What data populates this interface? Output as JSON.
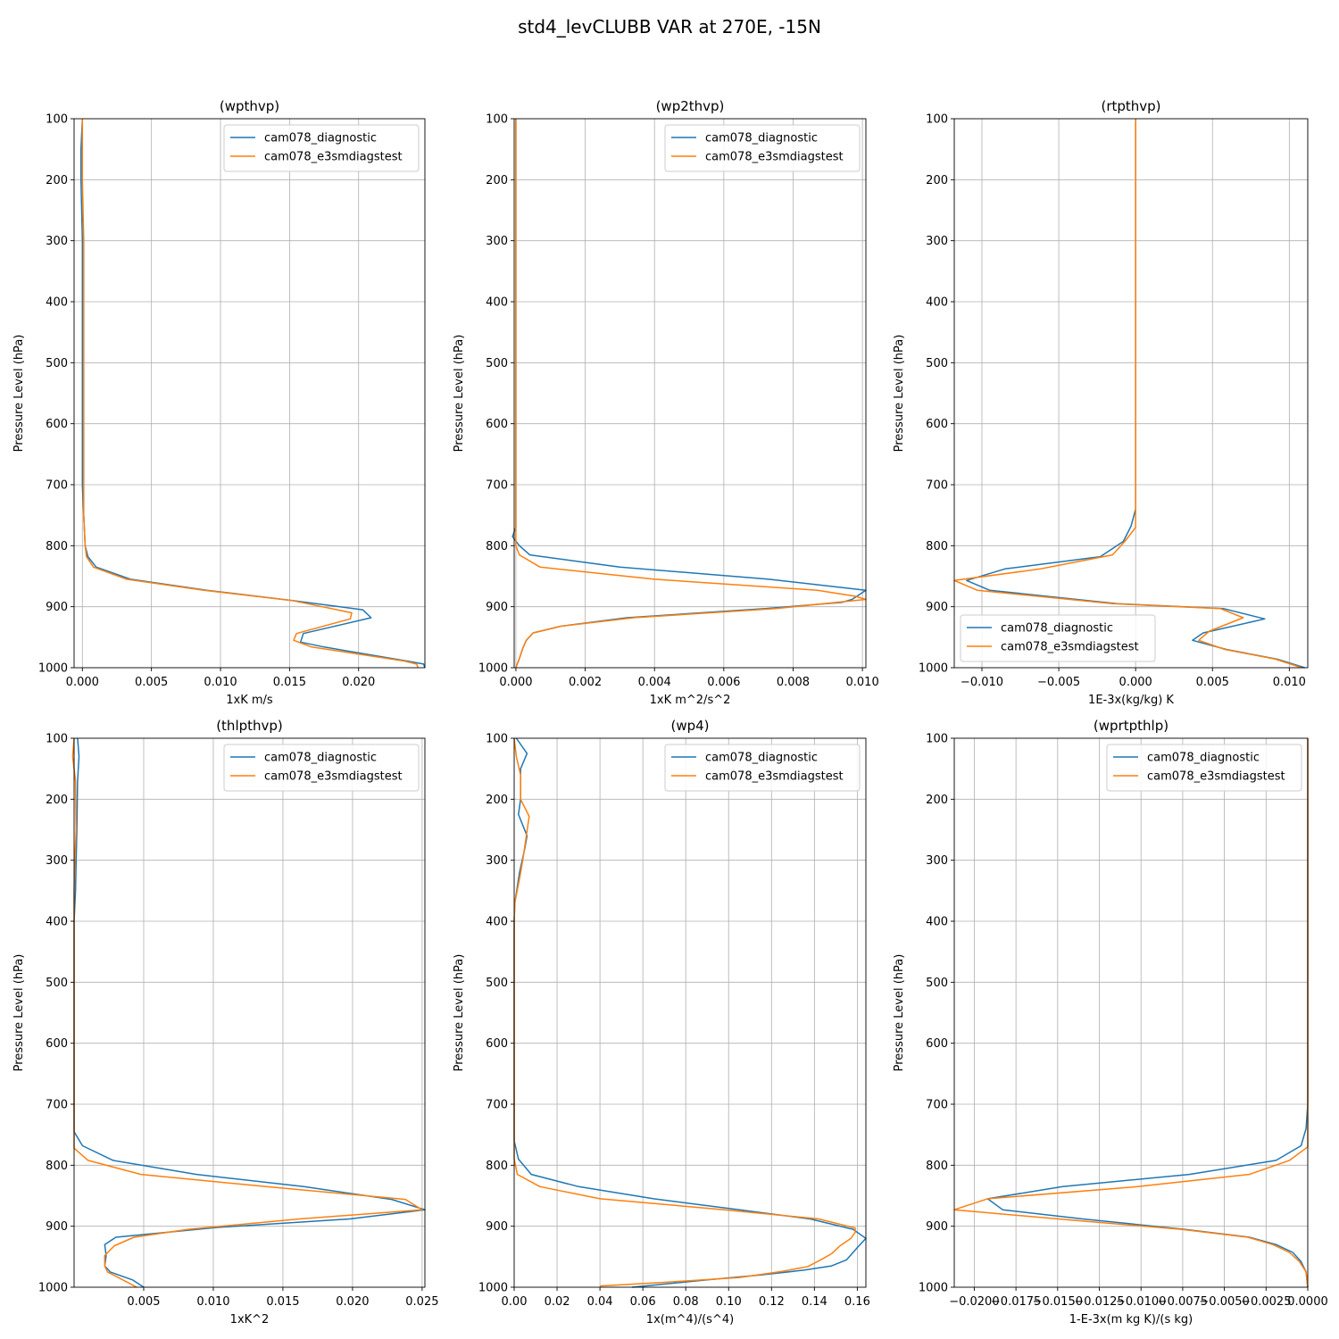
{
  "figure": {
    "suptitle": "std4_levCLUBB VAR at 270E, -15N"
  },
  "colors": {
    "diagnostic": "#1f77b4",
    "e3smdiagstest": "#ff7f0e",
    "grid": "#b0b0b0"
  },
  "chart_data": [
    {
      "type": "line",
      "title": "(wpthvp)",
      "xlabel": "1xK m/s",
      "ylabel": "Pressure Level (hPa)",
      "xlim": [
        -0.0006,
        0.0248
      ],
      "ylim": [
        1000,
        100
      ],
      "xticks": [
        0.0,
        0.005,
        0.01,
        0.015,
        0.02
      ],
      "xticklabels": [
        "0.000",
        "0.005",
        "0.010",
        "0.015",
        "0.020"
      ],
      "yticks": [
        100,
        200,
        300,
        400,
        500,
        600,
        700,
        800,
        900,
        1000
      ],
      "grid": true,
      "legend": "upper right",
      "series": [
        {
          "name": "cam078_diagnostic",
          "x": [
            0.0,
            -0.0001,
            -0.0001,
            0.0,
            0.0,
            0.0,
            0.0,
            0.0,
            0.0001,
            0.0002,
            0.0004,
            0.001,
            0.0035,
            0.009,
            0.0152,
            0.0203,
            0.0209,
            0.016,
            0.0158,
            0.0175,
            0.0235,
            0.0247,
            0.0248
          ],
          "y": [
            100,
            150,
            200,
            300,
            400,
            500,
            600,
            700,
            750,
            800,
            818,
            835,
            855,
            873,
            890,
            905,
            918,
            944,
            958,
            966,
            989,
            994,
            1000
          ]
        },
        {
          "name": "cam078_e3smdiagstest",
          "x": [
            0.0,
            0.0,
            0.0,
            0.0001,
            0.0001,
            0.0001,
            0.0001,
            0.0001,
            0.0001,
            0.0002,
            0.0003,
            0.0008,
            0.0032,
            0.0088,
            0.0152,
            0.0195,
            0.0194,
            0.0155,
            0.0153,
            0.0166,
            0.0233,
            0.0242,
            0.0243
          ],
          "y": [
            100,
            150,
            200,
            300,
            400,
            500,
            600,
            700,
            750,
            800,
            818,
            835,
            855,
            873,
            890,
            910,
            920,
            944,
            955,
            966,
            989,
            994,
            1000
          ]
        }
      ]
    },
    {
      "type": "line",
      "title": "(wp2thvp)",
      "xlabel": "1xK m^2/s^2",
      "ylabel": "Pressure Level (hPa)",
      "xlim": [
        -5e-05,
        0.0101
      ],
      "ylim": [
        1000,
        100
      ],
      "xticks": [
        0.0,
        0.002,
        0.004,
        0.006,
        0.008,
        0.01
      ],
      "xticklabels": [
        "0.000",
        "0.002",
        "0.004",
        "0.006",
        "0.008",
        "0.010"
      ],
      "yticks": [
        100,
        200,
        300,
        400,
        500,
        600,
        700,
        800,
        900,
        1000
      ],
      "grid": true,
      "legend": "upper right",
      "series": [
        {
          "name": "cam078_diagnostic",
          "x": [
            0.0,
            0.0,
            0.0,
            0.0,
            0.0,
            0.0,
            0.0,
            0.0,
            0.0,
            -0.0001,
            0.0001,
            0.0004,
            0.003,
            0.0073,
            0.0101,
            0.0097,
            0.0094,
            0.0072,
            0.0032,
            0.0013,
            0.0005,
            0.0003,
            0.0002,
            0.0001,
            0.0
          ],
          "y": [
            100,
            200,
            300,
            400,
            500,
            600,
            700,
            750,
            770,
            785,
            800,
            815,
            835,
            855,
            873,
            888,
            893,
            903,
            918,
            932,
            943,
            955,
            968,
            985,
            1000
          ]
        },
        {
          "name": "cam078_e3smdiagstest",
          "x": [
            0.0,
            0.0,
            0.0,
            0.0,
            0.0,
            0.0,
            0.0,
            0.0,
            0.0,
            0.0,
            0.0,
            0.0001,
            0.0007,
            0.004,
            0.0087,
            0.0098,
            0.0101,
            0.0075,
            0.0034,
            0.0013,
            0.0005,
            0.0003,
            0.0002,
            0.0001,
            0.0
          ],
          "y": [
            100,
            200,
            300,
            400,
            500,
            600,
            700,
            750,
            770,
            785,
            800,
            815,
            835,
            855,
            873,
            883,
            888,
            903,
            918,
            932,
            943,
            955,
            968,
            985,
            1000
          ]
        }
      ]
    },
    {
      "type": "line",
      "title": "(rtpthvp)",
      "xlabel": "1E-3x(kg/kg) K",
      "ylabel": "Pressure Level (hPa)",
      "xlim": [
        -0.0118,
        0.0112
      ],
      "ylim": [
        1000,
        100
      ],
      "xticks": [
        -0.01,
        -0.005,
        0.0,
        0.005,
        0.01
      ],
      "xticklabels": [
        "−0.010",
        "−0.005",
        "0.000",
        "0.005",
        "0.010"
      ],
      "yticks": [
        100,
        200,
        300,
        400,
        500,
        600,
        700,
        800,
        900,
        1000
      ],
      "grid": true,
      "legend": "lower left",
      "series": [
        {
          "name": "cam078_diagnostic",
          "x": [
            0.0,
            0.0,
            0.0,
            0.0,
            0.0,
            0.0,
            0.0,
            0.0,
            -0.0003,
            -0.0008,
            -0.0023,
            -0.0085,
            -0.011,
            -0.0095,
            -0.0012,
            0.0057,
            0.0084,
            0.0044,
            0.0037,
            0.0059,
            0.0092,
            0.011
          ],
          "y": [
            100,
            200,
            300,
            400,
            500,
            600,
            700,
            740,
            768,
            793,
            818,
            838,
            857,
            873,
            895,
            903,
            920,
            943,
            955,
            970,
            986,
            1000
          ]
        },
        {
          "name": "cam078_e3smdiagstest",
          "x": [
            0.0,
            0.0,
            0.0,
            0.0,
            0.0,
            0.0,
            0.0,
            0.0,
            0.0,
            -0.0007,
            -0.0015,
            -0.0062,
            -0.0118,
            -0.0103,
            -0.0015,
            0.0055,
            0.007,
            0.0048,
            0.0041,
            0.0058,
            0.0091,
            0.0108
          ],
          "y": [
            100,
            200,
            300,
            400,
            500,
            600,
            700,
            740,
            770,
            793,
            815,
            838,
            857,
            873,
            895,
            903,
            918,
            940,
            955,
            970,
            986,
            1000
          ]
        }
      ]
    },
    {
      "type": "line",
      "title": "(thlpthvp)",
      "xlabel": "1xK^2",
      "ylabel": "Pressure Level (hPa)",
      "xlim": [
        0.0,
        0.0252
      ],
      "ylim": [
        1000,
        100
      ],
      "xticks": [
        0.005,
        0.01,
        0.015,
        0.02,
        0.025
      ],
      "xticklabels": [
        "0.005",
        "0.010",
        "0.015",
        "0.020",
        "0.025"
      ],
      "yticks": [
        100,
        200,
        300,
        400,
        500,
        600,
        700,
        800,
        900,
        1000
      ],
      "grid": true,
      "legend": "upper right",
      "series": [
        {
          "name": "cam078_diagnostic",
          "x": [
            0.00025,
            0.00035,
            0.00025,
            0.0002,
            0.00015,
            0.0001,
            0.0,
            0.0,
            0.0,
            0.0,
            0.0,
            0.0006,
            0.0028,
            0.0088,
            0.0165,
            0.0228,
            0.0252,
            0.0198,
            0.0103,
            0.003,
            0.0022,
            0.0023,
            0.0022,
            0.0026,
            0.0042,
            0.005
          ],
          "y": [
            100,
            130,
            170,
            250,
            300,
            350,
            400,
            500,
            600,
            700,
            745,
            768,
            792,
            815,
            835,
            856,
            873,
            888,
            902,
            918,
            930,
            948,
            965,
            975,
            988,
            1000
          ]
        },
        {
          "name": "cam078_e3smdiagstest",
          "x": [
            0.0,
            -0.0001,
            0.0001,
            0.00015,
            5e-05,
            0.0,
            0.0,
            0.0,
            0.0,
            0.0,
            0.0,
            0.0,
            0.001,
            0.0048,
            0.0138,
            0.0238,
            0.025,
            0.0162,
            0.0082,
            0.0043,
            0.0029,
            0.0022,
            0.0022,
            0.0024,
            0.0035,
            0.0045
          ],
          "y": [
            100,
            130,
            170,
            250,
            300,
            350,
            400,
            500,
            600,
            700,
            740,
            772,
            792,
            815,
            835,
            856,
            873,
            888,
            905,
            918,
            932,
            948,
            965,
            975,
            988,
            1000
          ]
        }
      ]
    },
    {
      "type": "line",
      "title": "(wp4)",
      "xlabel": "1x(m^4)/(s^4)",
      "ylabel": "Pressure Level (hPa)",
      "xlim": [
        0.0,
        0.164
      ],
      "ylim": [
        1000,
        100
      ],
      "xticks": [
        0.0,
        0.02,
        0.04,
        0.06,
        0.08,
        0.1,
        0.12,
        0.14,
        0.16
      ],
      "xticklabels": [
        "0.00",
        "0.02",
        "0.04",
        "0.06",
        "0.08",
        "0.10",
        "0.12",
        "0.14",
        "0.16"
      ],
      "yticks": [
        100,
        200,
        300,
        400,
        500,
        600,
        700,
        800,
        900,
        1000
      ],
      "grid": true,
      "legend": "upper right",
      "series": [
        {
          "name": "cam078_diagnostic",
          "x": [
            0.001,
            0.006,
            0.003,
            0.003,
            0.002,
            0.006,
            0.005,
            0.0025,
            0.0003,
            0.0,
            0.0,
            0.0,
            0.0,
            0.0,
            0.002,
            0.008,
            0.03,
            0.065,
            0.105,
            0.138,
            0.158,
            0.164,
            0.16,
            0.155,
            0.148,
            0.135,
            0.115,
            0.09,
            0.055
          ],
          "y": [
            100,
            125,
            150,
            200,
            225,
            260,
            280,
            320,
            370,
            400,
            500,
            600,
            700,
            760,
            790,
            815,
            835,
            855,
            873,
            888,
            905,
            920,
            935,
            955,
            965,
            972,
            980,
            988,
            1000
          ]
        },
        {
          "name": "cam078_e3smdiagstest",
          "x": [
            0.0,
            0.001,
            0.003,
            0.003,
            0.007,
            0.004,
            0.0025,
            0.0003,
            0.0,
            0.0,
            0.0,
            0.0,
            0.0,
            0.0,
            0.0015,
            0.012,
            0.04,
            0.098,
            0.142,
            0.159,
            0.159,
            0.157,
            0.152,
            0.148,
            0.143,
            0.137,
            0.125,
            0.105,
            0.07,
            0.04
          ],
          "y": [
            100,
            130,
            160,
            200,
            228,
            300,
            330,
            370,
            400,
            500,
            600,
            700,
            760,
            790,
            815,
            835,
            855,
            873,
            888,
            903,
            910,
            920,
            932,
            945,
            955,
            966,
            974,
            984,
            992,
            998
          ]
        }
      ]
    },
    {
      "type": "line",
      "title": "(wprtpthlp)",
      "xlabel": "1-E-3x(m kg K)/(s kg)",
      "ylabel": "Pressure Level (hPa)",
      "xlim": [
        -0.0212,
        0.0
      ],
      "ylim": [
        1000,
        100
      ],
      "xticks": [
        -0.02,
        -0.0175,
        -0.015,
        -0.0125,
        -0.01,
        -0.0075,
        -0.005,
        -0.0025,
        0.0
      ],
      "xticklabels": [
        "−0.0200",
        "−0.0175",
        "−0.0150",
        "−0.0125",
        "−0.0100",
        "−0.0075",
        "−0.0050",
        "−0.0025",
        "0.0000"
      ],
      "yticks": [
        100,
        200,
        300,
        400,
        500,
        600,
        700,
        800,
        900,
        1000
      ],
      "grid": true,
      "legend": "upper right",
      "series": [
        {
          "name": "cam078_diagnostic",
          "x": [
            0.0,
            0.0,
            0.0,
            0.0,
            0.0,
            0.0,
            0.0,
            -0.0001,
            -0.0004,
            -0.0019,
            -0.0071,
            -0.0147,
            -0.0192,
            -0.0183,
            -0.0135,
            -0.0074,
            -0.0035,
            -0.0019,
            -0.0009,
            -0.0004,
            -0.0001,
            0.0
          ],
          "y": [
            100,
            200,
            300,
            400,
            500,
            600,
            700,
            740,
            768,
            792,
            815,
            835,
            855,
            873,
            888,
            905,
            918,
            930,
            943,
            958,
            975,
            1000
          ]
        },
        {
          "name": "cam078_e3smdiagstest",
          "x": [
            0.0,
            0.0,
            0.0,
            0.0,
            0.0,
            0.0,
            0.0,
            0.0,
            0.0,
            -0.0011,
            -0.0035,
            -0.0102,
            -0.0192,
            -0.0212,
            -0.0142,
            -0.0076,
            -0.0036,
            -0.0021,
            -0.0011,
            -0.0005,
            -0.0001,
            0.0
          ],
          "y": [
            100,
            200,
            300,
            400,
            500,
            600,
            700,
            740,
            770,
            792,
            815,
            835,
            855,
            873,
            890,
            905,
            918,
            930,
            943,
            958,
            975,
            1000
          ]
        }
      ]
    }
  ]
}
